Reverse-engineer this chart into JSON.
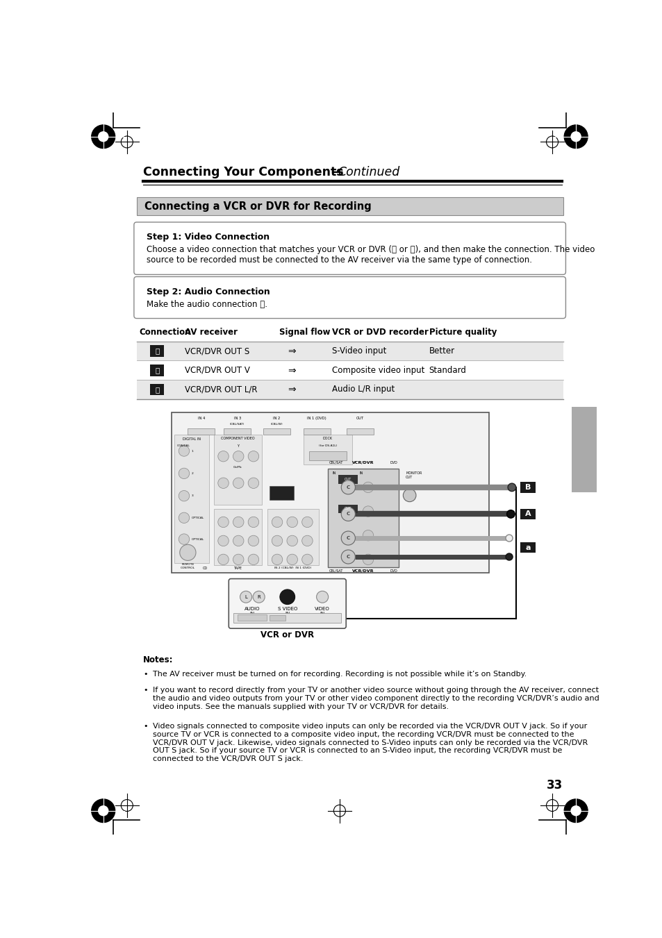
{
  "page_bg": "#ffffff",
  "page_width": 9.54,
  "page_height": 13.51,
  "dpi": 100,
  "title_bold": "Connecting Your Components",
  "title_em": "—Continued",
  "section_header": "Connecting a VCR or DVR for Recording",
  "section_header_bg": "#c8c8c8",
  "step1_title": "Step 1: Video Connection",
  "step1_body": "Choose a video connection that matches your VCR or DVR (Ⓐ or Ⓑ), and then make the connection. The video\nsource to be recorded must be connected to the AV receiver via the same type of connection.",
  "step2_title": "Step 2: Audio Connection",
  "step2_body": "Make the audio connection ⓐ.",
  "table_header_cols": [
    "Connection",
    "AV receiver",
    "Signal flow",
    "VCR or DVD recorder",
    "Picture quality"
  ],
  "table_rows": [
    [
      "Ⓐ",
      "VCR/DVR OUT S",
      "⇒",
      "S-Video input",
      "Better"
    ],
    [
      "Ⓑ",
      "VCR/DVR OUT V",
      "⇒",
      "Composite video input",
      "Standard"
    ],
    [
      "ⓐ",
      "VCR/DVR OUT L/R",
      "⇒",
      "Audio L/R input",
      ""
    ]
  ],
  "notes_title": "Notes:",
  "notes": [
    "The AV receiver must be turned on for recording. Recording is not possible while it’s on Standby.",
    "If you want to record directly from your TV or another video source without going through the AV receiver, connect\nthe audio and video outputs from your TV or other video component directly to the recording VCR/DVR’s audio and\nvideo inputs. See the manuals supplied with your TV or VCR/DVR for details.",
    "Video signals connected to composite video inputs can only be recorded via the VCR/DVR OUT V jack. So if your\nsource TV or VCR is connected to a composite video input, the recording VCR/DVR must be connected to the\nVCR/DVR OUT V jack. Likewise, video signals connected to S-Video inputs can only be recorded via the VCR/DVR\nOUT S jack. So if your source TV or VCR is connected to an S-Video input, the recording VCR/DVR must be\nconnected to the VCR/DVR OUT S jack."
  ],
  "page_number": "33",
  "gray_tab_color": "#aaaaaa"
}
